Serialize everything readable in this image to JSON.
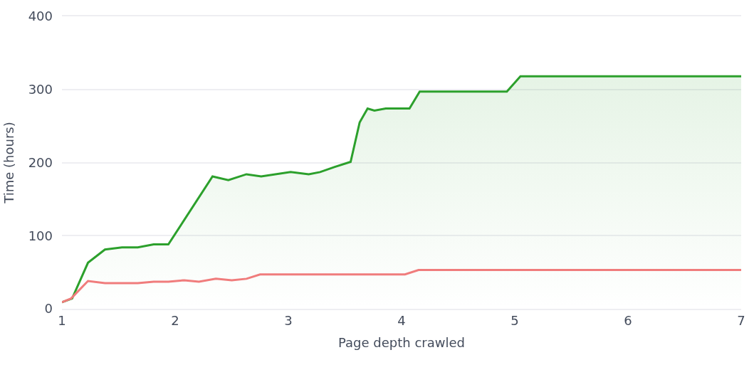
{
  "chart_data": {
    "type": "line",
    "xlabel": "Page depth crawled",
    "ylabel": "Time (hours)",
    "xlim": [
      1,
      7
    ],
    "ylim": [
      0,
      400
    ],
    "xticks": [
      1,
      2,
      3,
      4,
      5,
      6,
      7
    ],
    "yticks": [
      0,
      100,
      200,
      300,
      400
    ],
    "grid": "y",
    "series": [
      {
        "type": "area",
        "color": "#2ca02c",
        "x": [
          1.0,
          1.09,
          1.23,
          1.38,
          1.53,
          1.67,
          1.81,
          1.94,
          2.33,
          2.47,
          2.63,
          2.76,
          3.02,
          3.18,
          3.28,
          3.41,
          3.55,
          3.63,
          3.7,
          3.76,
          3.86,
          4.07,
          4.16,
          4.93,
          5.05,
          7.0
        ],
        "values": [
          9,
          14,
          63,
          81,
          84,
          84,
          88,
          88,
          181,
          176,
          184,
          181,
          187,
          184,
          187,
          194,
          201,
          255,
          274,
          271,
          274,
          274,
          297,
          297,
          318,
          318
        ]
      },
      {
        "color": "#f07c7c",
        "x": [
          1.0,
          1.08,
          1.23,
          1.38,
          1.67,
          1.81,
          1.94,
          2.08,
          2.21,
          2.36,
          2.5,
          2.63,
          2.75,
          4.03,
          4.15,
          7.0
        ],
        "values": [
          9,
          14,
          38,
          35,
          35,
          37,
          37,
          39,
          37,
          41,
          39,
          41,
          47,
          47,
          53,
          53
        ]
      }
    ]
  }
}
